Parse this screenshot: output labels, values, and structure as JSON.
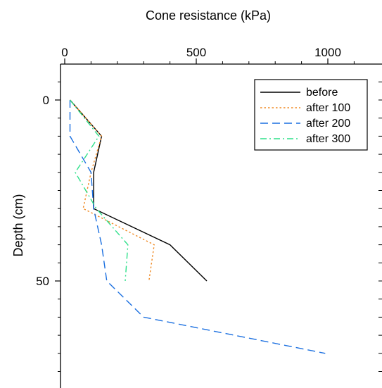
{
  "chart_data": {
    "type": "line",
    "xlabel": "Cone resistance (kPa)",
    "ylabel": "Depth (cm)",
    "x_axis_position": "top",
    "y_axis_inverted": true,
    "xlim": [
      0,
      1200
    ],
    "ylim": [
      -10,
      80
    ],
    "xticks": [
      0,
      500,
      1000
    ],
    "yticks": [
      0,
      50
    ],
    "legend_position": "top-right",
    "grid": false,
    "series": [
      {
        "name": "before",
        "color": "#000000",
        "dash": "solid",
        "x": [
          20,
          140,
          110,
          110,
          400,
          540
        ],
        "y": [
          0,
          10,
          20,
          30,
          40,
          50
        ]
      },
      {
        "name": "after 100",
        "color": "#f08a24",
        "dash": "dotted",
        "x": [
          20,
          140,
          100,
          70,
          340,
          320
        ],
        "y": [
          0,
          10,
          20,
          30,
          40,
          50
        ]
      },
      {
        "name": "after 200",
        "color": "#1a6fe0",
        "dash": "dashed",
        "x": [
          20,
          20,
          100,
          110,
          140,
          160,
          300,
          990
        ],
        "y": [
          0,
          10,
          20,
          30,
          40,
          50,
          60,
          70
        ]
      },
      {
        "name": "after 300",
        "color": "#2ee08a",
        "dash": "dashdot",
        "x": [
          20,
          130,
          40,
          120,
          240,
          230
        ],
        "y": [
          0,
          10,
          20,
          30,
          40,
          50
        ]
      }
    ]
  }
}
